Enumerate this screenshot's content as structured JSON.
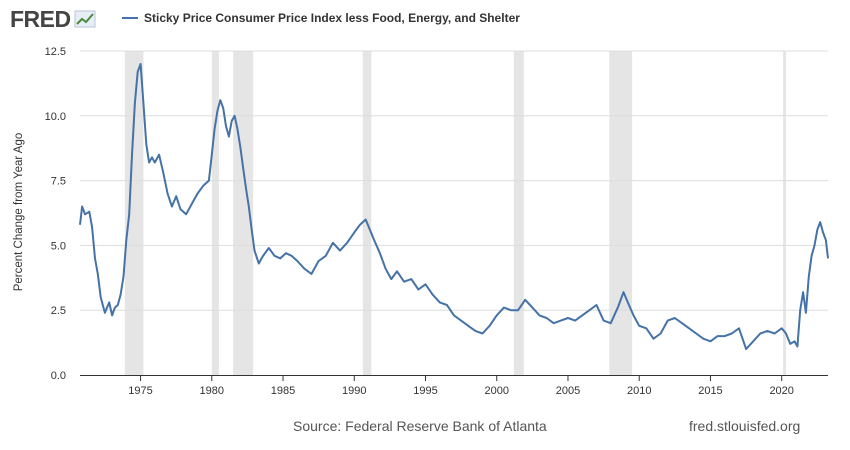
{
  "header": {
    "logo_text": "FRED",
    "legend_label": "Sticky Price Consumer Price Index less Food, Energy, and Shelter"
  },
  "footer": {
    "source": "Source: Federal Reserve Bank of Atlanta",
    "site": "fred.stlouisfed.org"
  },
  "colors": {
    "series": "#4572a7",
    "recession": "#e5e5e5",
    "grid": "#dddddd",
    "axis": "#333333"
  },
  "chart_data": {
    "type": "line",
    "ylabel": "Percent Change from Year Ago",
    "ylim": [
      0,
      12.5
    ],
    "xlim": [
      1970.75,
      2023.25
    ],
    "y_ticks": [
      0.0,
      2.5,
      5.0,
      7.5,
      10.0,
      12.5
    ],
    "y_tick_labels": [
      "0.0",
      "2.5",
      "5.0",
      "7.5",
      "10.0",
      "12.5"
    ],
    "x_ticks": [
      1975,
      1980,
      1985,
      1990,
      1995,
      2000,
      2005,
      2010,
      2015,
      2020
    ],
    "x_tick_labels": [
      "1975",
      "1980",
      "1985",
      "1990",
      "1995",
      "2000",
      "2005",
      "2010",
      "2015",
      "2020"
    ],
    "grid": "horizontal",
    "recessions": [
      [
        1973.9,
        1975.2
      ],
      [
        1980.0,
        1980.5
      ],
      [
        1981.5,
        1982.9
      ],
      [
        1990.6,
        1991.2
      ],
      [
        2001.2,
        2001.9
      ],
      [
        2007.9,
        2009.5
      ],
      [
        2020.1,
        2020.3
      ]
    ],
    "series": [
      {
        "x": [
          1970.75,
          1970.9,
          1971.1,
          1971.4,
          1971.6,
          1971.8,
          1972.0,
          1972.2,
          1972.5,
          1972.8,
          1973.0,
          1973.2,
          1973.4,
          1973.6,
          1973.8,
          1974.0,
          1974.2,
          1974.4,
          1974.6,
          1974.8,
          1975.0,
          1975.2,
          1975.4,
          1975.6,
          1975.8,
          1976.0,
          1976.3,
          1976.6,
          1976.9,
          1977.2,
          1977.5,
          1977.8,
          1978.2,
          1978.6,
          1979.0,
          1979.4,
          1979.8,
          1980.0,
          1980.2,
          1980.4,
          1980.6,
          1980.8,
          1981.0,
          1981.2,
          1981.4,
          1981.6,
          1981.8,
          1982.0,
          1982.2,
          1982.4,
          1982.6,
          1982.8,
          1983.0,
          1983.3,
          1983.6,
          1984.0,
          1984.4,
          1984.8,
          1985.2,
          1985.6,
          1986.0,
          1986.5,
          1987.0,
          1987.5,
          1988.0,
          1988.5,
          1989.0,
          1989.5,
          1990.0,
          1990.4,
          1990.8,
          1991.1,
          1991.4,
          1991.8,
          1992.2,
          1992.6,
          1993.0,
          1993.5,
          1994.0,
          1994.5,
          1995.0,
          1995.5,
          1996.0,
          1996.5,
          1997.0,
          1997.5,
          1998.0,
          1998.5,
          1999.0,
          1999.5,
          2000.0,
          2000.5,
          2001.0,
          2001.5,
          2002.0,
          2002.5,
          2003.0,
          2003.5,
          2004.0,
          2004.5,
          2005.0,
          2005.5,
          2006.0,
          2006.5,
          2007.0,
          2007.5,
          2008.0,
          2008.5,
          2008.9,
          2009.2,
          2009.6,
          2010.0,
          2010.5,
          2011.0,
          2011.5,
          2012.0,
          2012.5,
          2013.0,
          2013.5,
          2014.0,
          2014.5,
          2015.0,
          2015.5,
          2016.0,
          2016.5,
          2017.0,
          2017.5,
          2018.0,
          2018.5,
          2019.0,
          2019.5,
          2020.0,
          2020.3,
          2020.6,
          2020.9,
          2021.1,
          2021.3,
          2021.5,
          2021.7,
          2021.9,
          2022.1,
          2022.3,
          2022.5,
          2022.7,
          2022.9,
          2023.1,
          2023.25
        ],
        "values": [
          5.8,
          6.5,
          6.2,
          6.3,
          5.7,
          4.5,
          3.9,
          3.0,
          2.4,
          2.8,
          2.3,
          2.6,
          2.7,
          3.1,
          3.8,
          5.2,
          6.2,
          8.5,
          10.5,
          11.7,
          12.0,
          10.5,
          8.9,
          8.2,
          8.4,
          8.2,
          8.5,
          7.8,
          7.0,
          6.5,
          6.9,
          6.4,
          6.2,
          6.6,
          7.0,
          7.3,
          7.5,
          8.5,
          9.5,
          10.2,
          10.6,
          10.3,
          9.6,
          9.2,
          9.8,
          10.0,
          9.5,
          8.8,
          8.0,
          7.2,
          6.5,
          5.6,
          4.8,
          4.3,
          4.6,
          4.9,
          4.6,
          4.5,
          4.7,
          4.6,
          4.4,
          4.1,
          3.9,
          4.4,
          4.6,
          5.1,
          4.8,
          5.1,
          5.5,
          5.8,
          6.0,
          5.6,
          5.2,
          4.7,
          4.1,
          3.7,
          4.0,
          3.6,
          3.7,
          3.3,
          3.5,
          3.1,
          2.8,
          2.7,
          2.3,
          2.1,
          1.9,
          1.7,
          1.6,
          1.9,
          2.3,
          2.6,
          2.5,
          2.5,
          2.9,
          2.6,
          2.3,
          2.2,
          2.0,
          2.1,
          2.2,
          2.1,
          2.3,
          2.5,
          2.7,
          2.1,
          2.0,
          2.6,
          3.2,
          2.8,
          2.3,
          1.9,
          1.8,
          1.4,
          1.6,
          2.1,
          2.2,
          2.0,
          1.8,
          1.6,
          1.4,
          1.3,
          1.5,
          1.5,
          1.6,
          1.8,
          1.0,
          1.3,
          1.6,
          1.7,
          1.6,
          1.8,
          1.6,
          1.2,
          1.3,
          1.1,
          2.5,
          3.2,
          2.4,
          3.8,
          4.6,
          5.0,
          5.6,
          5.9,
          5.5,
          5.2,
          4.5
        ]
      }
    ]
  }
}
